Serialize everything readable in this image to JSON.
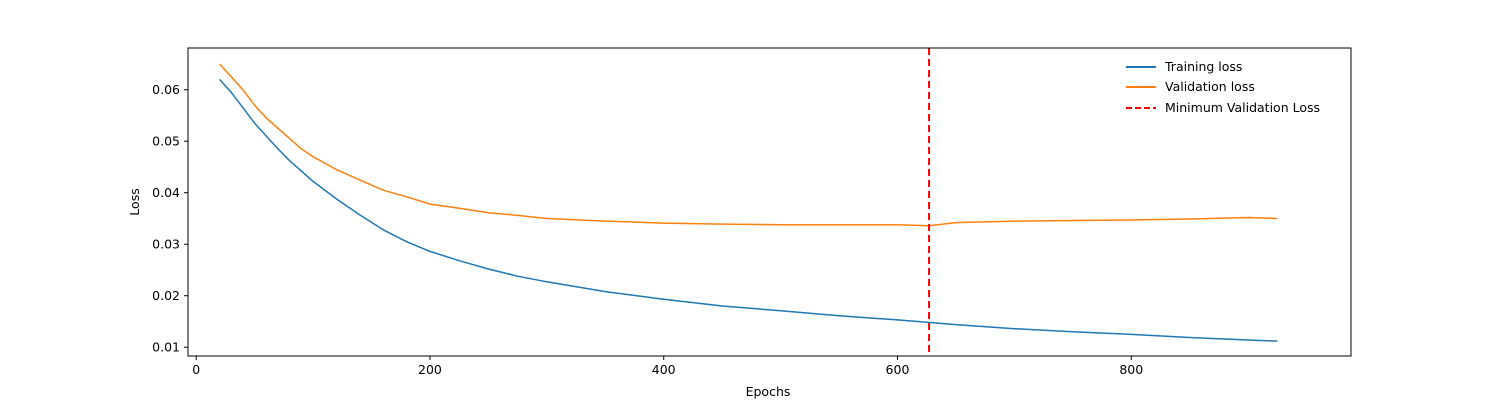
{
  "chart_data": {
    "type": "line",
    "title": "",
    "xlabel": "Epochs",
    "ylabel": "Loss",
    "xlim": [
      -7,
      988
    ],
    "ylim": [
      0.0083,
      0.0681
    ],
    "xticks": [
      0,
      200,
      400,
      600,
      800
    ],
    "yticks": [
      0.01,
      0.02,
      0.03,
      0.04,
      0.05,
      0.06
    ],
    "ytick_labels": [
      "0.01",
      "0.02",
      "0.03",
      "0.04",
      "0.05",
      "0.06"
    ],
    "grid": false,
    "legend_position": "top-right",
    "series": [
      {
        "name": "Training loss",
        "color": "#1f77b4",
        "x": [
          20,
          30,
          40,
          50,
          60,
          70,
          80,
          90,
          100,
          120,
          140,
          160,
          180,
          200,
          225,
          250,
          275,
          300,
          350,
          400,
          450,
          500,
          550,
          600,
          650,
          700,
          750,
          800,
          850,
          900,
          925
        ],
        "y": [
          0.062,
          0.0595,
          0.0565,
          0.0535,
          0.051,
          0.0485,
          0.0462,
          0.0442,
          0.0422,
          0.0388,
          0.0357,
          0.0328,
          0.0305,
          0.0286,
          0.0268,
          0.0252,
          0.0238,
          0.0227,
          0.0208,
          0.0193,
          0.018,
          0.0171,
          0.0161,
          0.0153,
          0.0144,
          0.0136,
          0.013,
          0.0125,
          0.0119,
          0.0114,
          0.0112
        ]
      },
      {
        "name": "Validation loss",
        "color": "#ff7f0e",
        "x": [
          20,
          30,
          40,
          50,
          60,
          70,
          80,
          90,
          100,
          120,
          140,
          160,
          180,
          200,
          225,
          250,
          275,
          300,
          350,
          400,
          450,
          500,
          550,
          600,
          627,
          650,
          700,
          750,
          800,
          850,
          900,
          925
        ],
        "y": [
          0.065,
          0.0625,
          0.06,
          0.057,
          0.0545,
          0.0525,
          0.0505,
          0.0485,
          0.047,
          0.0445,
          0.0425,
          0.0405,
          0.0392,
          0.0378,
          0.037,
          0.0361,
          0.0356,
          0.035,
          0.0345,
          0.0341,
          0.0339,
          0.0338,
          0.0338,
          0.0338,
          0.0336,
          0.0342,
          0.0345,
          0.0346,
          0.0347,
          0.0349,
          0.0352,
          0.035
        ]
      }
    ],
    "vline": {
      "name": "Minimum Validation Loss",
      "x": 627,
      "color": "#ff0000",
      "style": "dashed"
    }
  }
}
